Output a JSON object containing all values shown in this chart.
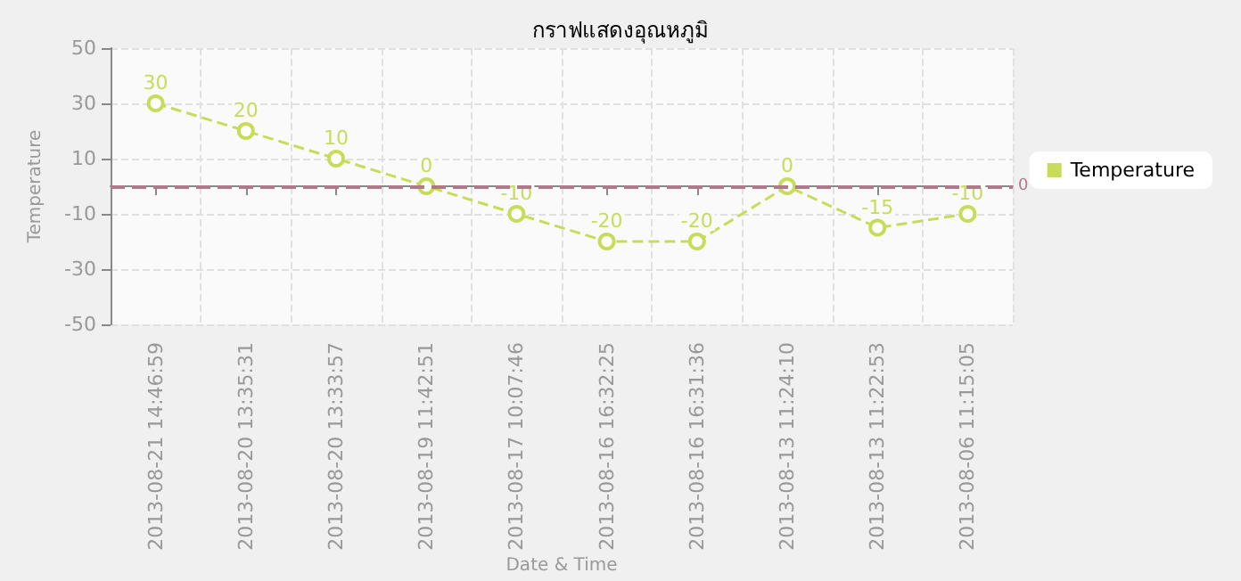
{
  "chart_data": {
    "type": "line",
    "title": "กราฟแสดงอุณหภูมิ",
    "xlabel": "Date & Time",
    "ylabel": "Temperature",
    "categories": [
      "2013-08-21 14:46:59",
      "2013-08-20 13:35:31",
      "2013-08-20 13:33:57",
      "2013-08-19 11:42:51",
      "2013-08-17 10:07:46",
      "2013-08-16 16:32:25",
      "2013-08-16 16:31:36",
      "2013-08-13 11:24:10",
      "2013-08-13 11:22:53",
      "2013-08-06 11:15:05"
    ],
    "series": [
      {
        "name": "Temperature",
        "color": "#c8dc5a",
        "values": [
          30,
          20,
          10,
          0,
          -10,
          -20,
          -20,
          0,
          -15,
          -10
        ]
      }
    ],
    "ylim": [
      -50,
      50
    ],
    "yticks": [
      -50,
      -30,
      -10,
      10,
      30,
      50
    ],
    "ref_lines": [
      {
        "axis": "y",
        "value": 0,
        "label": "0",
        "color": "#b07888",
        "line_style": "dashed"
      }
    ],
    "data_labels": true,
    "grid": true,
    "legend": "right",
    "marker": "circle",
    "line_style": "dashed"
  }
}
